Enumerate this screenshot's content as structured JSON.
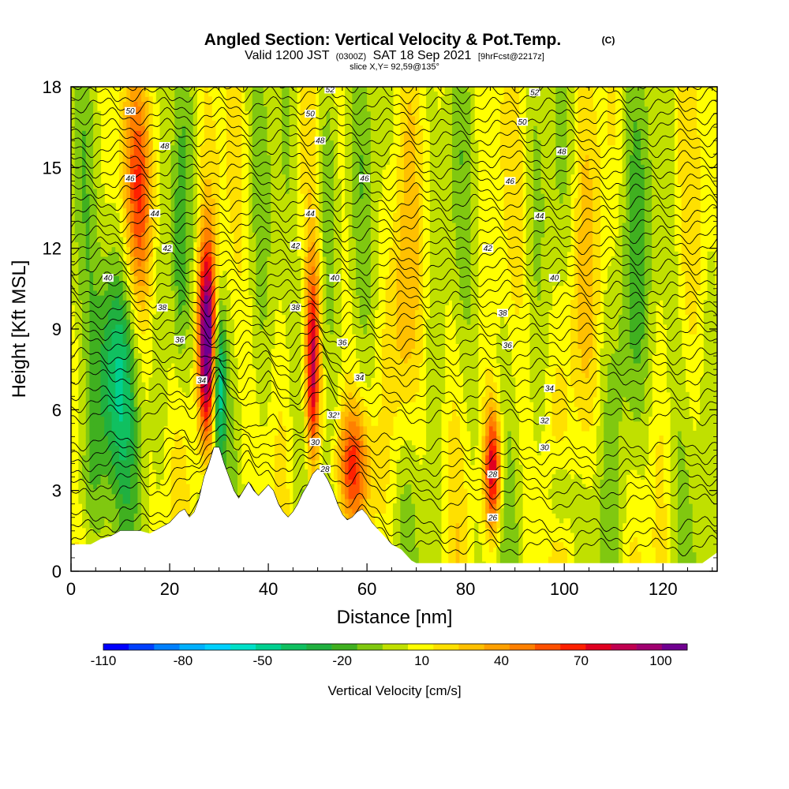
{
  "header": {
    "title": "Angled Section: Vertical Velocity & Pot.Temp.",
    "title_mark": "(C)",
    "valid_main": "Valid 1200 JST",
    "valid_zulu": "(0300Z)",
    "valid_date": "SAT 18 Sep 2021",
    "valid_fcst": "[9hrFcst@2217z]",
    "slice": "slice X,Y= 92,59@135°"
  },
  "chart_data": {
    "type": "heatmap",
    "xlabel": "Distance [nm]",
    "ylabel": "Height [Kft MSL]",
    "xlim": [
      0,
      131
    ],
    "ylim": [
      0,
      18
    ],
    "x_ticks": [
      "0",
      "20",
      "40",
      "60",
      "80",
      "100",
      "120"
    ],
    "y_ticks": [
      "0",
      "3",
      "6",
      "9",
      "12",
      "15",
      "18"
    ],
    "terrain_kft": [
      [
        0,
        1.0
      ],
      [
        2,
        1.0
      ],
      [
        4,
        1.0
      ],
      [
        6,
        1.2
      ],
      [
        8,
        1.3
      ],
      [
        10,
        1.5
      ],
      [
        12,
        1.5
      ],
      [
        14,
        1.5
      ],
      [
        16,
        1.4
      ],
      [
        18,
        1.6
      ],
      [
        20,
        1.8
      ],
      [
        22,
        2.2
      ],
      [
        23,
        2.3
      ],
      [
        24,
        2.0
      ],
      [
        25,
        2.2
      ],
      [
        26,
        2.7
      ],
      [
        27,
        3.5
      ],
      [
        28,
        4.0
      ],
      [
        29,
        4.6
      ],
      [
        30,
        4.6
      ],
      [
        31,
        4.0
      ],
      [
        32,
        3.5
      ],
      [
        33,
        3.0
      ],
      [
        34,
        2.7
      ],
      [
        35,
        3.0
      ],
      [
        36,
        3.3
      ],
      [
        37,
        3.0
      ],
      [
        38,
        2.8
      ],
      [
        39,
        3.0
      ],
      [
        40,
        3.2
      ],
      [
        41,
        3.0
      ],
      [
        42,
        2.5
      ],
      [
        43,
        2.2
      ],
      [
        44,
        2.0
      ],
      [
        45,
        2.2
      ],
      [
        46,
        2.5
      ],
      [
        47,
        2.9
      ],
      [
        48,
        3.2
      ],
      [
        49,
        3.6
      ],
      [
        50,
        3.8
      ],
      [
        51,
        3.7
      ],
      [
        52,
        3.4
      ],
      [
        53,
        3.0
      ],
      [
        54,
        2.5
      ],
      [
        55,
        2.1
      ],
      [
        56,
        1.9
      ],
      [
        57,
        2.0
      ],
      [
        58,
        2.2
      ],
      [
        59,
        2.3
      ],
      [
        60,
        2.1
      ],
      [
        61,
        1.8
      ],
      [
        62,
        1.6
      ],
      [
        63,
        1.4
      ],
      [
        64,
        1.2
      ],
      [
        65,
        1.0
      ],
      [
        66,
        0.9
      ],
      [
        67,
        0.8
      ],
      [
        68,
        0.6
      ],
      [
        69,
        0.4
      ],
      [
        70,
        0.3
      ],
      [
        80,
        0.3
      ],
      [
        90,
        0.3
      ],
      [
        100,
        0.3
      ],
      [
        110,
        0.3
      ],
      [
        120,
        0.3
      ],
      [
        128,
        0.3
      ],
      [
        131,
        0.7
      ]
    ],
    "vertical_velocity_features_cms": [
      {
        "x": 27.5,
        "y": 8.5,
        "sx": 1.3,
        "sy": 2.6,
        "value": 110
      },
      {
        "x": 49,
        "y": 7.5,
        "sx": 1.0,
        "sy": 2.6,
        "value": 75
      },
      {
        "x": 85.5,
        "y": 3.8,
        "sx": 1.2,
        "sy": 1.6,
        "value": 75
      },
      {
        "x": 57,
        "y": 4.0,
        "sx": 2.5,
        "sy": 1.5,
        "value": 50
      },
      {
        "x": 14,
        "y": 14,
        "sx": 2.2,
        "sy": 3.0,
        "value": 45
      },
      {
        "x": 67,
        "y": 9,
        "sx": 2.0,
        "sy": 3.5,
        "value": 25
      },
      {
        "x": 103,
        "y": 9,
        "sx": 2.5,
        "sy": 4.0,
        "value": 20
      },
      {
        "x": 9,
        "y": 7.3,
        "sx": 3.0,
        "sy": 3.2,
        "value": -50
      },
      {
        "x": 30,
        "y": 7.0,
        "sx": 1.0,
        "sy": 2.2,
        "value": -60
      },
      {
        "x": 113,
        "y": 9,
        "sx": 2.5,
        "sy": 4.5,
        "value": -20
      },
      {
        "x": 99,
        "y": 2.8,
        "sx": 1.5,
        "sy": 1.2,
        "value": -25
      },
      {
        "x": 52,
        "y": 14,
        "sx": 1.5,
        "sy": 3.5,
        "value": -22
      },
      {
        "x": 22,
        "y": 11,
        "sx": 1.0,
        "sy": 3.0,
        "value": -20
      },
      {
        "x": 3,
        "y": 3,
        "sx": 2.0,
        "sy": 2.0,
        "value": -20
      }
    ],
    "pot_temp_levels_c": [
      26,
      28,
      30,
      32,
      34,
      36,
      38,
      40,
      42,
      44,
      46,
      48,
      50,
      52
    ],
    "pot_temp_base_height_kft": [
      [
        26,
        1.2
      ],
      [
        28,
        2.8
      ],
      [
        30,
        4.0
      ],
      [
        32,
        5.8
      ],
      [
        34,
        7.2
      ],
      [
        36,
        8.5
      ],
      [
        38,
        9.7
      ],
      [
        40,
        10.9
      ],
      [
        42,
        12.1
      ],
      [
        44,
        13.3
      ],
      [
        46,
        14.5
      ],
      [
        48,
        15.7
      ],
      [
        50,
        16.9
      ],
      [
        52,
        18.1
      ]
    ],
    "pot_temp_labels": [
      {
        "text": "28",
        "x": 51.5,
        "y": 3.8
      },
      {
        "text": "30",
        "x": 49.5,
        "y": 4.8
      },
      {
        "text": "32",
        "x": 53.5,
        "y": 5.8
      },
      {
        "text": "34",
        "x": 26.5,
        "y": 7.1
      },
      {
        "text": "36",
        "x": 22.0,
        "y": 8.6
      },
      {
        "text": "38",
        "x": 18.5,
        "y": 9.8
      },
      {
        "text": "40",
        "x": 7.5,
        "y": 10.9
      },
      {
        "text": "42",
        "x": 19.5,
        "y": 12.0
      },
      {
        "text": "44",
        "x": 17.0,
        "y": 13.3
      },
      {
        "text": "46",
        "x": 12.0,
        "y": 14.6
      },
      {
        "text": "48",
        "x": 19.0,
        "y": 15.8
      },
      {
        "text": "50",
        "x": 12.0,
        "y": 17.1
      },
      {
        "text": "52",
        "x": 52.5,
        "y": 17.9
      },
      {
        "text": "50",
        "x": 48.5,
        "y": 17.0
      },
      {
        "text": "48",
        "x": 50.5,
        "y": 16.0
      },
      {
        "text": "46",
        "x": 59.5,
        "y": 14.6
      },
      {
        "text": "44",
        "x": 48.5,
        "y": 13.3
      },
      {
        "text": "42",
        "x": 45.5,
        "y": 12.1
      },
      {
        "text": "40",
        "x": 53.5,
        "y": 10.9
      },
      {
        "text": "38",
        "x": 45.5,
        "y": 9.8
      },
      {
        "text": "36",
        "x": 55.0,
        "y": 8.5
      },
      {
        "text": "34",
        "x": 58.5,
        "y": 7.2
      },
      {
        "text": "32",
        "x": 53.0,
        "y": 5.8
      },
      {
        "text": "28",
        "x": 85.5,
        "y": 3.6
      },
      {
        "text": "26",
        "x": 85.5,
        "y": 2.0
      },
      {
        "text": "30",
        "x": 96.0,
        "y": 4.6
      },
      {
        "text": "32",
        "x": 96.0,
        "y": 5.6
      },
      {
        "text": "34",
        "x": 97.0,
        "y": 6.8
      },
      {
        "text": "36",
        "x": 88.5,
        "y": 8.4
      },
      {
        "text": "38",
        "x": 87.5,
        "y": 9.6
      },
      {
        "text": "40",
        "x": 98.0,
        "y": 10.9
      },
      {
        "text": "42",
        "x": 84.5,
        "y": 12.0
      },
      {
        "text": "44",
        "x": 95.0,
        "y": 13.2
      },
      {
        "text": "46",
        "x": 89.0,
        "y": 14.5
      },
      {
        "text": "48",
        "x": 99.5,
        "y": 15.6
      },
      {
        "text": "50",
        "x": 91.5,
        "y": 16.7
      },
      {
        "text": "52",
        "x": 94.0,
        "y": 17.8
      }
    ]
  },
  "colorbar": {
    "label": "Vertical Velocity [cm/s]",
    "tick_labels": [
      "-110",
      "-80",
      "-50",
      "-20",
      "10",
      "40",
      "70",
      "100"
    ],
    "tick_values": [
      -110,
      -80,
      -50,
      -20,
      10,
      40,
      70,
      100
    ],
    "range": [
      -110,
      110
    ],
    "colors": [
      "#0000ff",
      "#0040ff",
      "#0080ff",
      "#00b0ff",
      "#00d0ff",
      "#00e0c8",
      "#00d090",
      "#10c060",
      "#20b040",
      "#40b020",
      "#80c810",
      "#c0e000",
      "#ffff00",
      "#ffe000",
      "#ffc000",
      "#ffa000",
      "#ff8000",
      "#ff5000",
      "#ff2000",
      "#e00020",
      "#c00050",
      "#a00070",
      "#700090"
    ]
  },
  "colors": {
    "terrain": "#ffffff",
    "contour": "#000000",
    "frame": "#000000"
  }
}
